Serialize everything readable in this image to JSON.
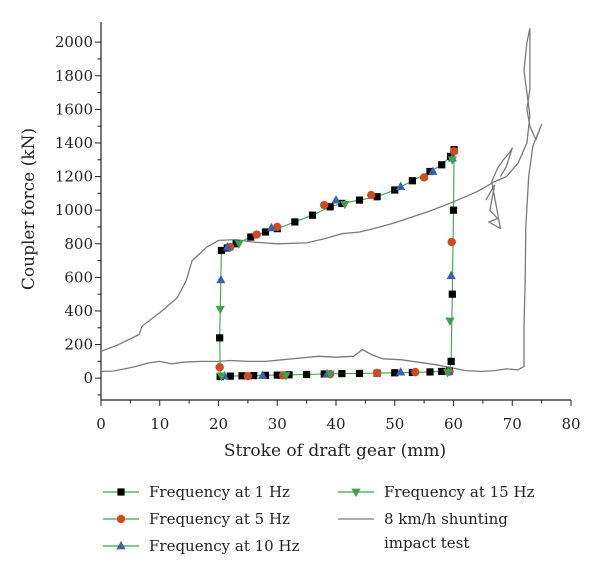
{
  "chart_data": {
    "type": "line",
    "xlabel": "Stroke of draft gear (mm)",
    "ylabel": "Coupler force (kN)",
    "xlim": [
      0,
      80
    ],
    "ylim": [
      -130,
      2120
    ],
    "x_ticks": [
      "0",
      "10",
      "20",
      "30",
      "40",
      "50",
      "60",
      "70",
      "80"
    ],
    "y_ticks": [
      "0",
      "200",
      "400",
      "600",
      "800",
      "1000",
      "1200",
      "1400",
      "1600",
      "1800",
      "2000"
    ],
    "x_tick_values": [
      0,
      10,
      20,
      30,
      40,
      50,
      60,
      70,
      80
    ],
    "y_tick_values": [
      0,
      200,
      400,
      600,
      800,
      1000,
      1200,
      1400,
      1600,
      1800,
      2000
    ],
    "grid": false,
    "legend_position": "bottom",
    "series": [
      {
        "name": "Frequency at 1 Hz",
        "color": "#000000",
        "marker": "square",
        "points": [
          [
            20.3,
            10
          ],
          [
            22,
            12
          ],
          [
            24,
            14
          ],
          [
            26,
            15
          ],
          [
            28,
            17
          ],
          [
            30,
            18
          ],
          [
            32,
            20
          ],
          [
            35,
            22
          ],
          [
            38,
            25
          ],
          [
            41,
            27
          ],
          [
            44,
            28
          ],
          [
            47,
            30
          ],
          [
            50,
            32
          ],
          [
            53,
            34
          ],
          [
            56,
            37
          ],
          [
            58,
            40
          ],
          [
            59.3,
            42
          ],
          [
            59.6,
            100
          ],
          [
            59.8,
            500
          ],
          [
            60,
            1000
          ],
          [
            60.1,
            1360
          ],
          [
            59.5,
            1320
          ],
          [
            58,
            1270
          ],
          [
            56,
            1230
          ],
          [
            53,
            1175
          ],
          [
            50,
            1120
          ],
          [
            47,
            1080
          ],
          [
            44,
            1060
          ],
          [
            41,
            1040
          ],
          [
            39,
            1020
          ],
          [
            36,
            970
          ],
          [
            33,
            930
          ],
          [
            30,
            890
          ],
          [
            28,
            870
          ],
          [
            25.5,
            840
          ],
          [
            23,
            800
          ],
          [
            21.5,
            775
          ],
          [
            20.5,
            760
          ],
          [
            20.2,
            240
          ],
          [
            20.3,
            10
          ]
        ]
      },
      {
        "name": "Frequency at 5 Hz",
        "color": "#d04a20",
        "marker": "circle",
        "points": [
          [
            25,
            12
          ],
          [
            31,
            17
          ],
          [
            39,
            24
          ],
          [
            47,
            31
          ],
          [
            53.5,
            36
          ],
          [
            59.3,
            39
          ],
          [
            59.7,
            810
          ],
          [
            60.1,
            1350
          ],
          [
            55,
            1195
          ],
          [
            46,
            1090
          ],
          [
            38,
            1030
          ],
          [
            30,
            900
          ],
          [
            26.5,
            855
          ],
          [
            22,
            780
          ],
          [
            20.2,
            65
          ]
        ]
      },
      {
        "name": "Frequency at 10 Hz",
        "color": "#3a62ad",
        "marker": "triangle-up",
        "points": [
          [
            21,
            13
          ],
          [
            27.5,
            16
          ],
          [
            38.5,
            25
          ],
          [
            51,
            36
          ],
          [
            59.2,
            40
          ],
          [
            59.6,
            610
          ],
          [
            59.8,
            1310
          ],
          [
            56.5,
            1230
          ],
          [
            51,
            1140
          ],
          [
            40,
            1060
          ],
          [
            29,
            895
          ],
          [
            21.5,
            780
          ],
          [
            20.4,
            585
          ]
        ]
      },
      {
        "name": "Frequency at 15 Hz",
        "color": "#3fa24a",
        "marker": "triangle-down",
        "points": [
          [
            20.5,
            12
          ],
          [
            31.5,
            16
          ],
          [
            39,
            25
          ],
          [
            59,
            34
          ],
          [
            59.4,
            340
          ],
          [
            59.8,
            1300
          ],
          [
            41.5,
            1035
          ],
          [
            23.5,
            800
          ],
          [
            20.3,
            410
          ]
        ]
      },
      {
        "name": "8 km/h shunting impact test",
        "color": "#7a7a7a",
        "marker": "none",
        "points": [
          [
            0,
            160
          ],
          [
            3,
            200
          ],
          [
            6.5,
            260
          ],
          [
            7,
            310
          ],
          [
            10,
            390
          ],
          [
            13,
            480
          ],
          [
            14.5,
            580
          ],
          [
            15.5,
            700
          ],
          [
            18,
            780
          ],
          [
            20,
            820
          ],
          [
            23,
            825
          ],
          [
            26,
            810
          ],
          [
            30,
            800
          ],
          [
            35,
            805
          ],
          [
            38,
            830
          ],
          [
            41,
            860
          ],
          [
            44,
            870
          ],
          [
            47,
            895
          ],
          [
            50,
            925
          ],
          [
            53,
            960
          ],
          [
            56,
            995
          ],
          [
            60,
            1050
          ],
          [
            64,
            1110
          ],
          [
            67,
            1170
          ],
          [
            69,
            1200
          ],
          [
            71,
            1280
          ],
          [
            72.5,
            1400
          ],
          [
            73,
            1560
          ],
          [
            72.5,
            1700
          ],
          [
            72,
            1830
          ],
          [
            72.5,
            2000
          ],
          [
            73,
            2080
          ],
          [
            73,
            1720
          ],
          [
            72.5,
            1600
          ],
          [
            73,
            1500
          ],
          [
            74,
            1420
          ],
          [
            75,
            1510
          ],
          [
            73.5,
            1380
          ],
          [
            72.8,
            1200
          ],
          [
            72.3,
            900
          ],
          [
            72.2,
            600
          ],
          [
            72,
            300
          ],
          [
            72,
            70
          ],
          [
            71,
            50
          ],
          [
            69,
            55
          ],
          [
            67,
            45
          ],
          [
            65,
            40
          ],
          [
            62,
            45
          ],
          [
            60,
            60
          ],
          [
            57,
            80
          ],
          [
            54,
            95
          ],
          [
            51,
            110
          ],
          [
            48,
            115
          ],
          [
            46,
            140
          ],
          [
            44.5,
            170
          ],
          [
            43,
            130
          ],
          [
            40,
            125
          ],
          [
            37,
            130
          ],
          [
            34,
            120
          ],
          [
            31,
            110
          ],
          [
            28,
            100
          ],
          [
            25,
            100
          ],
          [
            22,
            105
          ],
          [
            20,
            100
          ],
          [
            17,
            100
          ],
          [
            14,
            95
          ],
          [
            12,
            85
          ],
          [
            10,
            100
          ],
          [
            8,
            90
          ],
          [
            6,
            70
          ],
          [
            4,
            55
          ],
          [
            2,
            42
          ],
          [
            0,
            40
          ]
        ]
      },
      {
        "name": "",
        "color": "#7a7a7a",
        "marker": "none",
        "points": [
          [
            65.5,
            1060
          ],
          [
            67,
            1150
          ],
          [
            66.2,
            1000
          ],
          [
            67.5,
            950
          ],
          [
            66,
            930
          ],
          [
            68,
            890
          ],
          [
            66.5,
            1170
          ],
          [
            67.5,
            1250
          ],
          [
            68.5,
            1300
          ],
          [
            69.5,
            1340
          ],
          [
            70,
            1370
          ],
          [
            69,
            1260
          ],
          [
            68,
            1200
          ]
        ]
      }
    ],
    "legend": {
      "entries": [
        {
          "label": "Frequency at 1 Hz",
          "color": "#000000",
          "marker": "square"
        },
        {
          "label": "Frequency at 5 Hz",
          "color": "#d04a20",
          "marker": "circle"
        },
        {
          "label": "Frequency at 10 Hz",
          "color": "#3a62ad",
          "marker": "triangle-up"
        },
        {
          "label": "Frequency at 15 Hz",
          "color": "#3fa24a",
          "marker": "triangle-down"
        },
        {
          "label": "8 km/h shunting",
          "label_line2": "impact test",
          "color": "#7a7a7a",
          "marker": "none"
        }
      ]
    }
  }
}
